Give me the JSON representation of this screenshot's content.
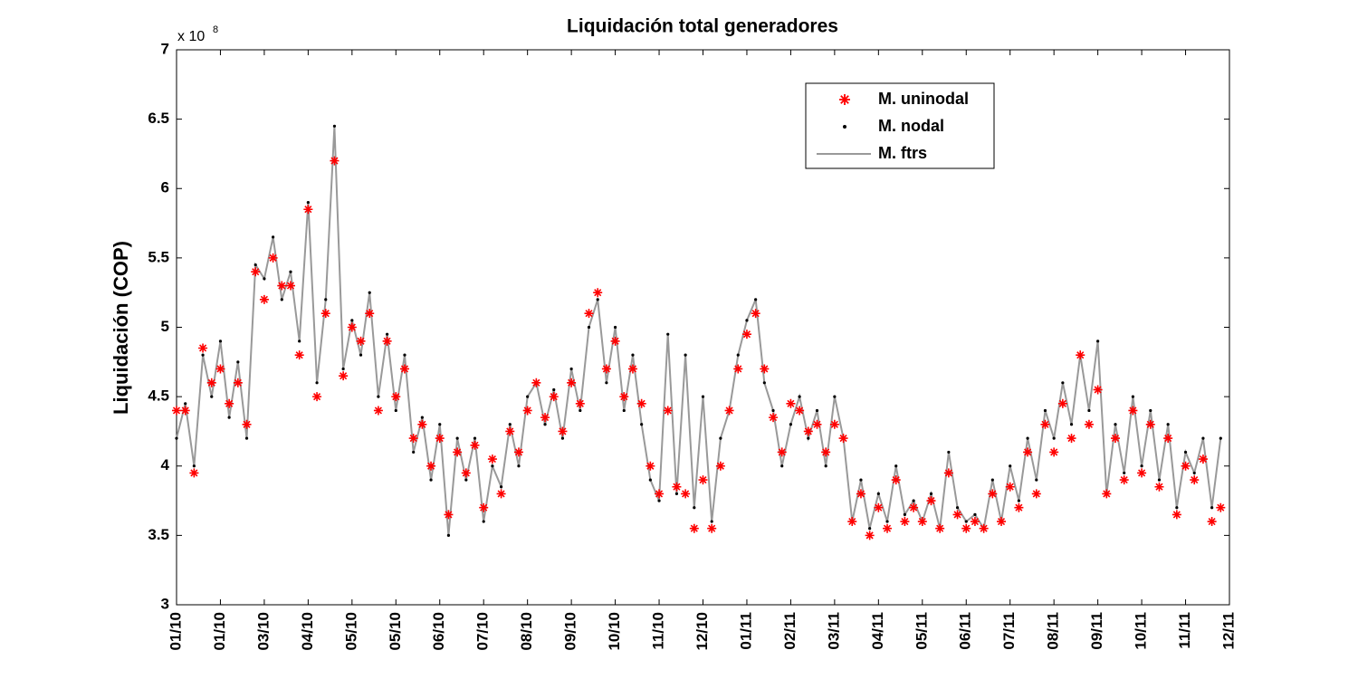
{
  "chart_data": {
    "type": "line",
    "title": "Liquidación total generadores",
    "y_label": "Liquidación (COP)",
    "y_multiplier": "x 10",
    "y_exponent": "8",
    "legend": "upper right",
    "xlim": [
      0,
      720
    ],
    "ylim": [
      3,
      7
    ],
    "yticks": [
      3,
      3.5,
      4,
      4.5,
      5,
      5.5,
      6,
      6.5,
      7
    ],
    "xticks": [
      {
        "value": 0,
        "label": "01/10"
      },
      {
        "value": 30,
        "label": "01/10"
      },
      {
        "value": 60,
        "label": "03/10"
      },
      {
        "value": 90,
        "label": "04/10"
      },
      {
        "value": 120,
        "label": "05/10"
      },
      {
        "value": 150,
        "label": "05/10"
      },
      {
        "value": 180,
        "label": "06/10"
      },
      {
        "value": 210,
        "label": "07/10"
      },
      {
        "value": 240,
        "label": "08/10"
      },
      {
        "value": 270,
        "label": "09/10"
      },
      {
        "value": 300,
        "label": "10/10"
      },
      {
        "value": 330,
        "label": "11/10"
      },
      {
        "value": 360,
        "label": "12/10"
      },
      {
        "value": 390,
        "label": "01/11"
      },
      {
        "value": 420,
        "label": "02/11"
      },
      {
        "value": 450,
        "label": "03/11"
      },
      {
        "value": 480,
        "label": "04/11"
      },
      {
        "value": 510,
        "label": "05/11"
      },
      {
        "value": 540,
        "label": "06/11"
      },
      {
        "value": 570,
        "label": "07/11"
      },
      {
        "value": 600,
        "label": "08/11"
      },
      {
        "value": 630,
        "label": "09/11"
      },
      {
        "value": 660,
        "label": "10/11"
      },
      {
        "value": 690,
        "label": "11/11"
      },
      {
        "value": 720,
        "label": "12/11"
      }
    ],
    "x": [
      0,
      6,
      12,
      18,
      24,
      30,
      36,
      42,
      48,
      54,
      60,
      66,
      72,
      78,
      84,
      90,
      96,
      102,
      108,
      114,
      120,
      126,
      132,
      138,
      144,
      150,
      156,
      162,
      168,
      174,
      180,
      186,
      192,
      198,
      204,
      210,
      216,
      222,
      228,
      234,
      240,
      246,
      252,
      258,
      264,
      270,
      276,
      282,
      288,
      294,
      300,
      306,
      312,
      318,
      324,
      330,
      336,
      342,
      348,
      354,
      360,
      366,
      372,
      378,
      384,
      390,
      396,
      402,
      408,
      414,
      420,
      426,
      432,
      438,
      444,
      450,
      456,
      462,
      468,
      474,
      480,
      486,
      492,
      498,
      504,
      510,
      516,
      522,
      528,
      534,
      540,
      546,
      552,
      558,
      564,
      570,
      576,
      582,
      588,
      594,
      600,
      606,
      612,
      618,
      624,
      630,
      636,
      642,
      648,
      654,
      660,
      666,
      672,
      678,
      684,
      690,
      696,
      702,
      708,
      714
    ],
    "series": [
      {
        "name": "M. uninodal",
        "color": "#ff0000",
        "marker": "star",
        "values": [
          4.4,
          4.4,
          3.95,
          4.85,
          4.6,
          4.7,
          4.45,
          4.6,
          4.3,
          5.4,
          5.2,
          5.5,
          5.3,
          5.3,
          4.8,
          5.85,
          4.5,
          5.1,
          6.2,
          4.65,
          5.0,
          4.9,
          5.1,
          4.4,
          4.9,
          4.5,
          4.7,
          4.2,
          4.3,
          4.0,
          4.2,
          3.65,
          4.1,
          3.95,
          4.15,
          3.7,
          4.05,
          3.8,
          4.25,
          4.1,
          4.4,
          4.6,
          4.35,
          4.5,
          4.25,
          4.6,
          4.45,
          5.1,
          5.25,
          4.7,
          4.9,
          4.5,
          4.7,
          4.45,
          4.0,
          3.8,
          4.4,
          3.85,
          3.8,
          3.55,
          3.9,
          3.55,
          4.0,
          4.4,
          4.7,
          4.95,
          5.1,
          4.7,
          4.35,
          4.1,
          4.45,
          4.4,
          4.25,
          4.3,
          4.1,
          4.3,
          4.2,
          3.6,
          3.8,
          3.5,
          3.7,
          3.55,
          3.9,
          3.6,
          3.7,
          3.6,
          3.75,
          3.55,
          3.95,
          3.65,
          3.55,
          3.6,
          3.55,
          3.8,
          3.6,
          3.85,
          3.7,
          4.1,
          3.8,
          4.3,
          4.1,
          4.45,
          4.2,
          4.8,
          4.3,
          4.55,
          3.8,
          4.2,
          3.9,
          4.4,
          3.95,
          4.3,
          3.85,
          4.2,
          3.65,
          4.0,
          3.9,
          4.05,
          3.6,
          3.7
        ]
      },
      {
        "name": "M. nodal",
        "color": "#000000",
        "marker": "dot",
        "values": [
          4.2,
          4.45,
          4.0,
          4.8,
          4.5,
          4.9,
          4.35,
          4.75,
          4.2,
          5.45,
          5.35,
          5.65,
          5.2,
          5.4,
          4.9,
          5.9,
          4.6,
          5.2,
          6.45,
          4.7,
          5.05,
          4.8,
          5.25,
          4.5,
          4.95,
          4.4,
          4.8,
          4.1,
          4.35,
          3.9,
          4.3,
          3.5,
          4.2,
          3.9,
          4.2,
          3.6,
          4.0,
          3.85,
          4.3,
          4.0,
          4.5,
          4.6,
          4.3,
          4.55,
          4.2,
          4.7,
          4.4,
          5.0,
          5.2,
          4.6,
          5.0,
          4.4,
          4.8,
          4.3,
          3.9,
          3.75,
          4.95,
          3.8,
          4.8,
          3.7,
          4.5,
          3.6,
          4.2,
          4.4,
          4.8,
          5.05,
          5.2,
          4.6,
          4.4,
          4.0,
          4.3,
          4.5,
          4.2,
          4.4,
          4.0,
          4.5,
          4.2,
          3.6,
          3.9,
          3.55,
          3.8,
          3.6,
          4.0,
          3.65,
          3.75,
          3.6,
          3.8,
          3.55,
          4.1,
          3.7,
          3.6,
          3.65,
          3.55,
          3.9,
          3.6,
          4.0,
          3.75,
          4.2,
          3.9,
          4.4,
          4.2,
          4.6,
          4.3,
          4.8,
          4.4,
          4.9,
          3.8,
          4.3,
          3.95,
          4.5,
          4.0,
          4.4,
          3.9,
          4.3,
          3.7,
          4.1,
          3.95,
          4.2,
          3.7,
          4.2
        ]
      },
      {
        "name": "M. ftrs",
        "color": "#999999",
        "marker": "line",
        "values": [
          4.2,
          4.45,
          4.0,
          4.8,
          4.5,
          4.9,
          4.35,
          4.75,
          4.2,
          5.45,
          5.35,
          5.65,
          5.2,
          5.4,
          4.9,
          5.9,
          4.6,
          5.2,
          6.45,
          4.7,
          5.05,
          4.8,
          5.25,
          4.5,
          4.95,
          4.4,
          4.8,
          4.1,
          4.35,
          3.9,
          4.3,
          3.5,
          4.2,
          3.9,
          4.2,
          3.6,
          4.0,
          3.85,
          4.3,
          4.0,
          4.5,
          4.6,
          4.3,
          4.55,
          4.2,
          4.7,
          4.4,
          5.0,
          5.2,
          4.6,
          5.0,
          4.4,
          4.8,
          4.3,
          3.9,
          3.75,
          4.95,
          3.8,
          4.8,
          3.7,
          4.5,
          3.6,
          4.2,
          4.4,
          4.8,
          5.05,
          5.2,
          4.6,
          4.4,
          4.0,
          4.3,
          4.5,
          4.2,
          4.4,
          4.0,
          4.5,
          4.2,
          3.6,
          3.9,
          3.55,
          3.8,
          3.6,
          4.0,
          3.65,
          3.75,
          3.6,
          3.8,
          3.55,
          4.1,
          3.7,
          3.6,
          3.65,
          3.55,
          3.9,
          3.6,
          4.0,
          3.75,
          4.2,
          3.9,
          4.4,
          4.2,
          4.6,
          4.3,
          4.8,
          4.4,
          4.9,
          3.8,
          4.3,
          3.95,
          4.5,
          4.0,
          4.4,
          3.9,
          4.3,
          3.7,
          4.1,
          3.95,
          4.2,
          3.7,
          4.2
        ]
      }
    ]
  }
}
